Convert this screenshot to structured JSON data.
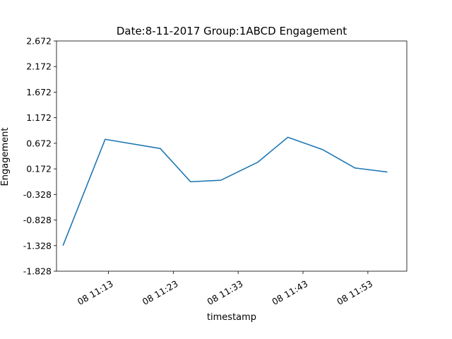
{
  "chart_data": {
    "type": "line",
    "title": "Date:8-11-2017 Group:1ABCD Engagement",
    "xlabel": "timestamp",
    "ylabel": "Engagement",
    "x_type": "time",
    "x_range": [
      "11:05",
      "11:59"
    ],
    "xticks": [
      {
        "at": "11:13",
        "label": "08 11:13"
      },
      {
        "at": "11:23",
        "label": "08 11:23"
      },
      {
        "at": "11:33",
        "label": "08 11:33"
      },
      {
        "at": "11:43",
        "label": "08 11:43"
      },
      {
        "at": "11:53",
        "label": "08 11:53"
      }
    ],
    "ylim": [
      -1.828,
      2.672
    ],
    "yticks": [
      -1.828,
      -1.328,
      -0.828,
      -0.328,
      0.172,
      0.672,
      1.172,
      1.672,
      2.172,
      2.672
    ],
    "ytick_labels": [
      "-1.828",
      "-1.328",
      "-0.828",
      "-0.328",
      "0.172",
      "0.672",
      "1.172",
      "1.672",
      "2.172",
      "2.672"
    ],
    "grid": false,
    "series": [
      {
        "color": "#1f77b4",
        "x": [
          "11:06",
          "11:12:30",
          "11:21",
          "11:25:40",
          "11:30:20",
          "11:36",
          "11:40:40",
          "11:46",
          "11:51",
          "11:56"
        ],
        "values": [
          -1.328,
          0.75,
          0.57,
          -0.08,
          -0.05,
          0.3,
          0.79,
          0.55,
          0.19,
          0.11
        ]
      }
    ]
  }
}
